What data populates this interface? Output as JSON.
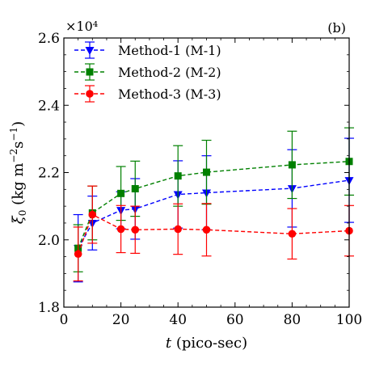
{
  "panel_label": "(b)",
  "chart_data": {
    "type": "line",
    "panel_label": "(b)",
    "axis_multiplier": "×10⁴",
    "x": [
      5,
      10,
      20,
      25,
      40,
      50,
      80,
      100
    ],
    "xlim": [
      0,
      100
    ],
    "ylim": [
      1.8,
      2.6
    ],
    "y_scale_factor": 10000,
    "xticks": [
      "0",
      "20",
      "40",
      "60",
      "80",
      "100"
    ],
    "yticks": [
      "1.8",
      "2.0",
      "2.2",
      "2.4",
      "2.6"
    ],
    "xlabel": {
      "symbol": "t",
      "text": " (pico-sec)"
    },
    "ylabel": {
      "symbol": "ξ",
      "sub": "0",
      "text": " (kg m",
      "sup1": "−2",
      "mid": "s",
      "sup2": "−1",
      "end": ")"
    },
    "grid": false,
    "legend_position": "top-left",
    "series": [
      {
        "name": "Method-1 (M-1)",
        "color": "#0000ff",
        "marker": "triangle-down",
        "values": [
          1.975,
          2.05,
          2.088,
          2.092,
          2.135,
          2.14,
          2.153,
          2.177
        ],
        "errors": [
          0.1,
          0.08,
          0.055,
          0.09,
          0.1,
          0.11,
          0.115,
          0.125
        ]
      },
      {
        "name": "Method-2 (M-2)",
        "color": "#008000",
        "marker": "square",
        "values": [
          1.975,
          2.08,
          2.138,
          2.152,
          2.19,
          2.201,
          2.223,
          2.233
        ],
        "errors": [
          0.07,
          0.08,
          0.08,
          0.082,
          0.09,
          0.095,
          0.1,
          0.1
        ]
      },
      {
        "name": "Method-3 (M-3)",
        "color": "#ff0000",
        "marker": "circle",
        "values": [
          1.958,
          2.075,
          2.032,
          2.03,
          2.032,
          2.03,
          2.018,
          2.027
        ],
        "errors": [
          0.08,
          0.085,
          0.07,
          0.07,
          0.075,
          0.078,
          0.075,
          0.075
        ]
      }
    ]
  }
}
